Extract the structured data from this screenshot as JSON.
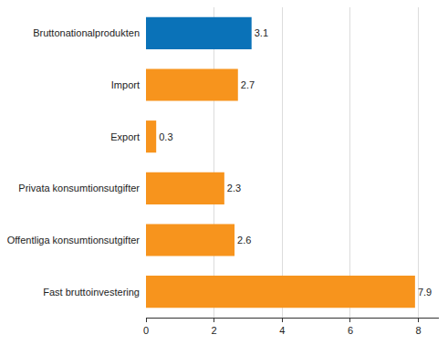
{
  "chart_data": {
    "type": "bar",
    "orientation": "horizontal",
    "categories": [
      "Bruttonationalprodukten",
      "Import",
      "Export",
      "Privata konsumtionsutgifter",
      "Offentliga konsumtionsutgifter",
      "Fast bruttoinvestering"
    ],
    "values": [
      3.1,
      2.7,
      0.3,
      2.3,
      2.6,
      7.9
    ],
    "colors": [
      "#0a72b8",
      "#f7941d",
      "#f7941d",
      "#f7941d",
      "#f7941d",
      "#f7941d"
    ],
    "xlim": [
      0,
      8.6
    ],
    "xticks": [
      0,
      2,
      4,
      6,
      8
    ],
    "grid": true,
    "data_labels": true
  }
}
